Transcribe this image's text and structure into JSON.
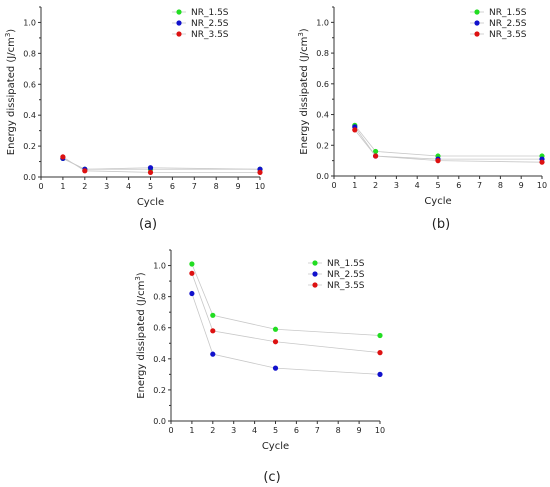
{
  "chart_data": [
    {
      "type": "scatter",
      "panel": "(a)",
      "xlabel": "Cycle",
      "ylabel_main": "Energy dissipated (J/cm",
      "ylabel_sup": "3",
      "ylabel_close": ")",
      "xlim": [
        0,
        10
      ],
      "ylim": [
        0,
        1.1
      ],
      "xticks": [
        "0",
        "1",
        "2",
        "3",
        "4",
        "5",
        "6",
        "7",
        "8",
        "9",
        "10"
      ],
      "yticks": [
        "0.0",
        "0.2",
        "0.4",
        "0.6",
        "0.8",
        "1.0"
      ],
      "legend_position": "top-right",
      "x": [
        1,
        2,
        5,
        10
      ],
      "series": [
        {
          "name": "NR_1.5S",
          "color": "#22dd22",
          "values": [
            0.12,
            0.05,
            0.05,
            0.05
          ]
        },
        {
          "name": "NR_2.5S",
          "color": "#1111cc",
          "values": [
            0.12,
            0.05,
            0.06,
            0.05
          ]
        },
        {
          "name": "NR_3.5S",
          "color": "#dd1111",
          "values": [
            0.13,
            0.04,
            0.03,
            0.03
          ]
        }
      ]
    },
    {
      "type": "scatter",
      "panel": "(b)",
      "xlabel": "Cycle",
      "ylabel_main": "Energy dissipated (J/cm",
      "ylabel_sup": "3",
      "ylabel_close": ")",
      "xlim": [
        0,
        10
      ],
      "ylim": [
        0,
        1.1
      ],
      "xticks": [
        "0",
        "1",
        "2",
        "3",
        "4",
        "5",
        "6",
        "7",
        "8",
        "9",
        "10"
      ],
      "yticks": [
        "0.0",
        "0.2",
        "0.4",
        "0.6",
        "0.8",
        "1.0"
      ],
      "legend_position": "top-right",
      "x": [
        1,
        2,
        5,
        10
      ],
      "series": [
        {
          "name": "NR_1.5S",
          "color": "#22dd22",
          "values": [
            0.33,
            0.16,
            0.13,
            0.13
          ]
        },
        {
          "name": "NR_2.5S",
          "color": "#1111cc",
          "values": [
            0.32,
            0.13,
            0.11,
            0.11
          ]
        },
        {
          "name": "NR_3.5S",
          "color": "#dd1111",
          "values": [
            0.3,
            0.13,
            0.1,
            0.09
          ]
        }
      ]
    },
    {
      "type": "scatter",
      "panel": "(c)",
      "xlabel": "Cycle",
      "ylabel_main": "Energy dissipated (J/cm",
      "ylabel_sup": "3",
      "ylabel_close": ")",
      "xlim": [
        0,
        10
      ],
      "ylim": [
        0,
        1.1
      ],
      "xticks": [
        "0",
        "1",
        "2",
        "3",
        "4",
        "5",
        "6",
        "7",
        "8",
        "9",
        "10"
      ],
      "yticks": [
        "0.0",
        "0.2",
        "0.4",
        "0.6",
        "0.8",
        "1.0"
      ],
      "legend_position": "top-right",
      "x": [
        1,
        2,
        5,
        10
      ],
      "series": [
        {
          "name": "NR_1.5S",
          "color": "#22dd22",
          "values": [
            1.01,
            0.68,
            0.59,
            0.55
          ]
        },
        {
          "name": "NR_2.5S",
          "color": "#1111cc",
          "values": [
            0.82,
            0.43,
            0.34,
            0.3
          ]
        },
        {
          "name": "NR_3.5S",
          "color": "#dd1111",
          "values": [
            0.95,
            0.58,
            0.51,
            0.44
          ]
        }
      ]
    }
  ]
}
